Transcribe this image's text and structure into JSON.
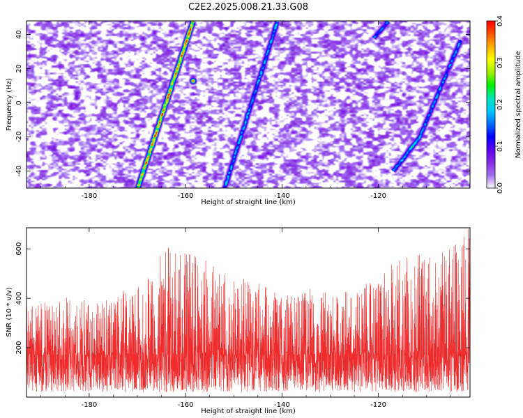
{
  "title": "C2E2.2025.008.21.33.G08",
  "chart_data": [
    {
      "type": "heatmap",
      "xlabel": "Height of straight line (km)",
      "ylabel": "Frequency (Hz)",
      "xlim": [
        -193,
        -101
      ],
      "ylim": [
        -50,
        48
      ],
      "xticks": [
        -180,
        -160,
        -140,
        -120
      ],
      "yticks": [
        -40,
        -20,
        0,
        20,
        40
      ],
      "colorbar": {
        "label": "Normalized spectral amplitude",
        "range": [
          0,
          0.4
        ],
        "ticks": [
          0.0,
          0.1,
          0.2,
          0.3,
          0.4
        ],
        "colors": [
          "#ffffff",
          "#a070f0",
          "#8a2be2",
          "#5a00f0",
          "#0000ff",
          "#0070ff",
          "#00c8ff",
          "#00e6b4",
          "#00f000",
          "#a0f000",
          "#ffff00",
          "#ffb000",
          "#ff5000",
          "#ff0000"
        ]
      },
      "streaks": [
        {
          "x": [
            -170,
            -158.5
          ],
          "y": [
            -50,
            48
          ],
          "peak": 0.38,
          "peak_at": [
            -158.5,
            13
          ]
        },
        {
          "x": [
            -152,
            -141
          ],
          "y": [
            -50,
            48
          ],
          "peak": 0.2
        },
        {
          "x": [
            -117,
            -111.5
          ],
          "y": [
            -40,
            -20
          ],
          "peak": 0.22
        },
        {
          "x": [
            -111.5,
            -103
          ],
          "y": [
            -20,
            37
          ],
          "peak": 0.18
        },
        {
          "x": [
            -121,
            -118
          ],
          "y": [
            38,
            48
          ],
          "peak": 0.17
        }
      ]
    },
    {
      "type": "line",
      "xlabel": "Height of straight line (km)",
      "ylabel": "SNR (10 * v/v)",
      "xlim": [
        -193,
        -101
      ],
      "ylim": [
        0,
        685
      ],
      "xticks": [
        -180,
        -160,
        -140,
        -120
      ],
      "yticks": [
        200,
        400,
        600
      ],
      "color": "#ee2c2c",
      "baseline": 170,
      "envelope_peaks": [
        {
          "x": -190,
          "y": 380
        },
        {
          "x": -185,
          "y": 410
        },
        {
          "x": -177,
          "y": 390
        },
        {
          "x": -173,
          "y": 440
        },
        {
          "x": -168,
          "y": 480
        },
        {
          "x": -164,
          "y": 620
        },
        {
          "x": -160,
          "y": 600
        },
        {
          "x": -156,
          "y": 560
        },
        {
          "x": -151,
          "y": 500
        },
        {
          "x": -145,
          "y": 460
        },
        {
          "x": -140,
          "y": 420
        },
        {
          "x": -133,
          "y": 470
        },
        {
          "x": -127,
          "y": 440
        },
        {
          "x": -120,
          "y": 470
        },
        {
          "x": -115,
          "y": 600
        },
        {
          "x": -108,
          "y": 560
        },
        {
          "x": -102,
          "y": 690
        }
      ]
    }
  ]
}
